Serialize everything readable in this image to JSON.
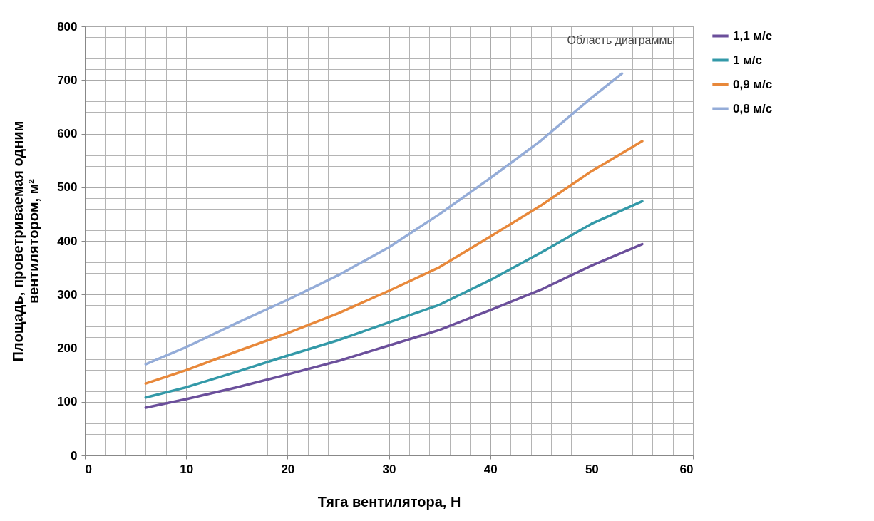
{
  "chart_data": {
    "type": "line",
    "xlabel": "Тяга вентилятора, Н",
    "ylabel": "Площадь, проветриваемая одним\nвентилятором, м²",
    "x": [
      6,
      10,
      15,
      20,
      25,
      30,
      35,
      40,
      45,
      50,
      55
    ],
    "series": [
      {
        "name": "1,1 м/с",
        "color": "#6b4f9b",
        "values": [
          89,
          105,
          127,
          151,
          176,
          205,
          234,
          271,
          309,
          354,
          394
        ]
      },
      {
        "name": "1 м/с",
        "color": "#3399a8",
        "values": [
          108,
          127,
          156,
          186,
          215,
          248,
          281,
          327,
          378,
          432,
          474
        ]
      },
      {
        "name": "0,9 м/с",
        "color": "#e8883a",
        "values": [
          134,
          159,
          194,
          228,
          265,
          307,
          351,
          408,
          466,
          530,
          586
        ]
      },
      {
        "name": "0,8 м/с",
        "color": "#94acd8",
        "x": [
          6,
          10,
          15,
          20,
          25,
          30,
          35,
          40,
          45,
          50,
          53
        ],
        "values": [
          170,
          202,
          247,
          290,
          336,
          388,
          450,
          517,
          587,
          667,
          712
        ]
      }
    ],
    "xlim": [
      0,
      60
    ],
    "xticks": [
      0,
      10,
      20,
      30,
      40,
      50,
      60
    ],
    "ylim": [
      0,
      800
    ],
    "yticks": [
      0,
      100,
      200,
      300,
      400,
      500,
      600,
      700,
      800
    ],
    "grid": true,
    "legend": "right",
    "line_style": "solid",
    "marker": "none",
    "annotations": [
      "Область диаграммы"
    ]
  }
}
